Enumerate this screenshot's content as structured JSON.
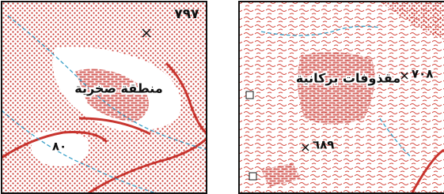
{
  "maps": [
    {
      "elevation": "٧٩٧",
      "area_label": "منطقة صخرية",
      "contour_label": "٨٠"
    },
    {
      "area_label": "مقذوفات بركانية",
      "points": [
        "٧٠٨",
        "٦٨٩"
      ]
    }
  ]
}
